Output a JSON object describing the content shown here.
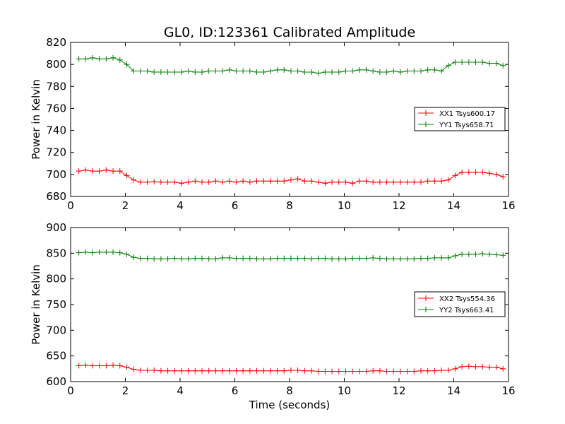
{
  "title": "GL0, ID:123361 Calibrated Amplitude",
  "colors": {
    "xx": "#ff0000",
    "yy": "#008000"
  },
  "chart_data": [
    {
      "type": "line",
      "xlabel": "",
      "ylabel": "Power in Kelvin",
      "xlim": [
        0,
        16
      ],
      "ylim": [
        680,
        820
      ],
      "xticks": [
        0,
        2,
        4,
        6,
        8,
        10,
        12,
        14,
        16
      ],
      "yticks": [
        680,
        700,
        720,
        740,
        760,
        780,
        800,
        820
      ],
      "legend_position": "center-right",
      "grid": false,
      "x": [
        0.3,
        0.55,
        0.8,
        1.05,
        1.3,
        1.55,
        1.8,
        2.05,
        2.3,
        2.55,
        2.8,
        3.05,
        3.3,
        3.55,
        3.8,
        4.05,
        4.3,
        4.55,
        4.8,
        5.05,
        5.3,
        5.55,
        5.8,
        6.05,
        6.3,
        6.55,
        6.8,
        7.05,
        7.3,
        7.55,
        7.8,
        8.05,
        8.3,
        8.55,
        8.8,
        9.05,
        9.3,
        9.55,
        9.8,
        10.05,
        10.3,
        10.55,
        10.8,
        11.05,
        11.3,
        11.55,
        11.8,
        12.05,
        12.3,
        12.55,
        12.8,
        13.05,
        13.3,
        13.55,
        13.8,
        14.05,
        14.3,
        14.55,
        14.8,
        15.05,
        15.3,
        15.55,
        15.8
      ],
      "series": [
        {
          "name": "XX1 Tsys600.17",
          "color": "#ff0000",
          "values": [
            703,
            704,
            703,
            703,
            704,
            703,
            703,
            699,
            695,
            693,
            693,
            693.5,
            693,
            693,
            693,
            692,
            693,
            694,
            693,
            693,
            694,
            693,
            694,
            693,
            694,
            693,
            694,
            694,
            694,
            694,
            694,
            695,
            696,
            694,
            694,
            693,
            692,
            693,
            693,
            693,
            692,
            694,
            694,
            693,
            693,
            693,
            693,
            693,
            693,
            693,
            693,
            694,
            694,
            694,
            695,
            699,
            702,
            702,
            702,
            702,
            701,
            700,
            698
          ]
        },
        {
          "name": "YY1 Tsys658.71",
          "color": "#008000",
          "values": [
            805,
            805,
            806,
            805,
            805,
            806,
            804,
            800,
            794,
            794,
            794,
            793,
            793,
            793,
            793,
            793,
            794,
            793,
            793,
            794,
            794,
            794,
            795,
            794,
            794,
            794,
            793,
            793,
            794,
            795,
            795,
            794,
            794,
            793,
            793,
            792,
            793,
            793,
            793,
            794,
            794,
            795,
            795,
            794,
            793,
            793,
            794,
            793,
            794,
            794,
            794,
            795,
            795,
            794,
            799,
            802,
            802,
            802,
            802,
            802,
            801,
            801,
            799
          ]
        }
      ]
    },
    {
      "type": "line",
      "xlabel": "Time (seconds)",
      "ylabel": "Power in Kelvin",
      "xlim": [
        0,
        16
      ],
      "ylim": [
        600,
        900
      ],
      "xticks": [
        0,
        2,
        4,
        6,
        8,
        10,
        12,
        14,
        16
      ],
      "yticks": [
        600,
        650,
        700,
        750,
        800,
        850,
        900
      ],
      "legend_position": "center-right",
      "grid": false,
      "x": [
        0.3,
        0.55,
        0.8,
        1.05,
        1.3,
        1.55,
        1.8,
        2.05,
        2.3,
        2.55,
        2.8,
        3.05,
        3.3,
        3.55,
        3.8,
        4.05,
        4.3,
        4.55,
        4.8,
        5.05,
        5.3,
        5.55,
        5.8,
        6.05,
        6.3,
        6.55,
        6.8,
        7.05,
        7.3,
        7.55,
        7.8,
        8.05,
        8.3,
        8.55,
        8.8,
        9.05,
        9.3,
        9.55,
        9.8,
        10.05,
        10.3,
        10.55,
        10.8,
        11.05,
        11.3,
        11.55,
        11.8,
        12.05,
        12.3,
        12.55,
        12.8,
        13.05,
        13.3,
        13.55,
        13.8,
        14.05,
        14.3,
        14.55,
        14.8,
        15.05,
        15.3,
        15.55,
        15.8
      ],
      "series": [
        {
          "name": "XX2 Tsys554.36",
          "color": "#ff0000",
          "values": [
            631,
            632,
            631,
            631,
            631,
            632,
            631,
            628,
            624,
            622,
            622,
            622,
            621,
            621,
            621,
            621,
            621,
            621,
            621,
            621,
            621,
            621,
            621,
            621,
            621,
            621,
            621,
            621,
            621,
            621,
            621,
            622,
            622,
            621,
            621,
            620,
            620,
            620,
            620,
            620,
            620,
            620,
            620,
            621,
            621,
            620,
            620,
            620,
            620,
            620,
            621,
            621,
            621,
            622,
            622,
            625,
            629,
            630,
            629,
            629,
            628,
            628,
            625
          ]
        },
        {
          "name": "YY2 Tsys663.41",
          "color": "#008000",
          "values": [
            851,
            852,
            851,
            852,
            852,
            852,
            851,
            848,
            842,
            840,
            840,
            839,
            839,
            839,
            840,
            839,
            839,
            840,
            840,
            839,
            839,
            841,
            841,
            840,
            840,
            840,
            839,
            839,
            839,
            840,
            840,
            840,
            840,
            840,
            839,
            840,
            840,
            839,
            839,
            839,
            840,
            840,
            840,
            841,
            840,
            839,
            839,
            839,
            839,
            839,
            840,
            840,
            841,
            841,
            841,
            845,
            848,
            848,
            848,
            849,
            848,
            847,
            846
          ]
        }
      ]
    }
  ]
}
